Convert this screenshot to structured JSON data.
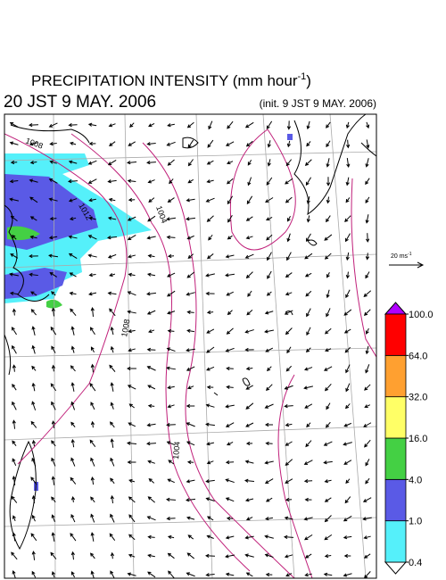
{
  "header": {
    "title": [
      "PRECIPITATION INTENSITY (mm hour",
      "-1",
      ")"
    ],
    "valid_time": "20 JST 9 MAY. 2006",
    "init_time": "(init. 9 JST 9 MAY. 2006)"
  },
  "vector_reference": [
    "20 ms",
    "-1"
  ],
  "isobar_labels": [
    "1008",
    "1012",
    "1004",
    "1008",
    "1004"
  ],
  "colorbar": {
    "levels": [
      {
        "value": 0.4,
        "label": "0.4"
      },
      {
        "value": 1,
        "label": "1.0"
      },
      {
        "value": 4,
        "label": "4.0"
      },
      {
        "value": 16,
        "label": "16.0"
      },
      {
        "value": 32,
        "label": "32.0"
      },
      {
        "value": 64,
        "label": "64.0"
      },
      {
        "value": 100,
        "label": "100.0"
      }
    ],
    "colors": [
      "#55f0fa",
      "#5a5ae6",
      "#44d044",
      "#ffff66",
      "#ffa030",
      "#ff0000"
    ],
    "over_color": "#b000ff",
    "under_color": "#ffffff"
  }
}
